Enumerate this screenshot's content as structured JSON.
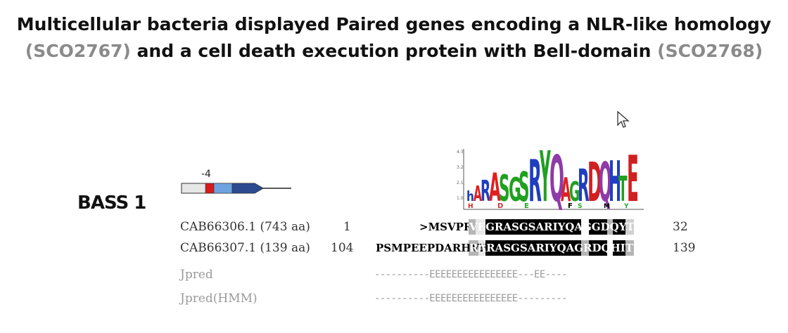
{
  "title": {
    "line1": "Multicellular bacteria  displayed Paired genes encoding a NLR-like homology",
    "line2_open": "(SCO2767)",
    "line2_mid": " and a cell death execution protein with Bell-domain ",
    "line2_close": "(SCO2768)"
  },
  "section_label": "BASS 1",
  "gene_diagram": {
    "label": "-4"
  },
  "logo_letters": [
    "h",
    "A",
    "R",
    "A",
    "S",
    "G",
    "S",
    "R",
    "Y",
    "Q",
    "A",
    "G",
    "R",
    "D",
    "Q",
    "H",
    "T",
    "E"
  ],
  "alignment": [
    {
      "id": "CAB66306.1",
      "length": "(743 aa)",
      "start": "1",
      "prefix": ">MSVPRP",
      "seq": "VEGRASGSARIYQAGGDQYTEEHVHH",
      "end": "32"
    },
    {
      "id": "CAB66307.1",
      "length": "(139 aa)",
      "start": "104",
      "prefix": "PSMPEEPDARHVHU",
      "seq": "RARASGSARIYQAGRDQHITER*",
      "end": "139"
    }
  ],
  "jpred": [
    {
      "label": "Jpred",
      "pred": "----------EEEEEEEEEEEEEEEE---EE----"
    },
    {
      "label": "Jpred(HMM)",
      "pred": "----------EEEEEEEEEEEEEEEE---------"
    }
  ],
  "colors": {
    "gray_text": "#8a8a8a",
    "hit_bg": "#000000",
    "partial_bg": "#b5b5b5"
  }
}
